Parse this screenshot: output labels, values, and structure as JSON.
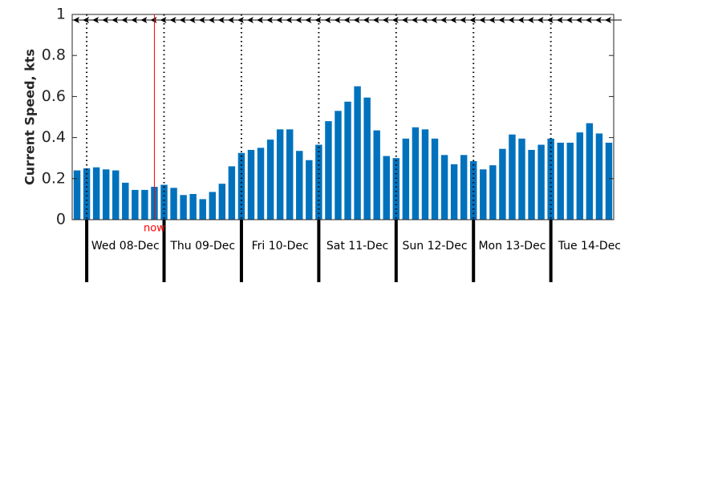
{
  "chart_data": {
    "type": "bar",
    "y_label": "Current Speed, kts",
    "x": [
      -3,
      0,
      3,
      6,
      9,
      12,
      15,
      18,
      21,
      24,
      27,
      30,
      33,
      36,
      39,
      42,
      45,
      48,
      51,
      54,
      57,
      60,
      63,
      66,
      69,
      72,
      75,
      78,
      81,
      84,
      87,
      90,
      93,
      96,
      99,
      102,
      105,
      108,
      111,
      114,
      117,
      120,
      123,
      126,
      129,
      132,
      135,
      138,
      141,
      144,
      147,
      150,
      153,
      156,
      159,
      162
    ],
    "values": [
      0.24,
      0.25,
      0.255,
      0.245,
      0.24,
      0.18,
      0.145,
      0.145,
      0.16,
      0.17,
      0.155,
      0.12,
      0.125,
      0.1,
      0.135,
      0.175,
      0.26,
      0.325,
      0.34,
      0.35,
      0.39,
      0.44,
      0.44,
      0.335,
      0.29,
      0.365,
      0.48,
      0.53,
      0.575,
      0.65,
      0.595,
      0.435,
      0.31,
      0.3,
      0.395,
      0.45,
      0.44,
      0.395,
      0.315,
      0.27,
      0.315,
      0.285,
      0.245,
      0.265,
      0.345,
      0.415,
      0.395,
      0.34,
      0.365,
      0.395,
      0.375,
      0.375,
      0.425,
      0.47,
      0.42,
      0.375
    ],
    "color": "#0072bd",
    "xlim": [
      -4.5,
      163.5
    ],
    "xticks": [
      {
        "value": 0,
        "label": "Wed 08-Dec"
      },
      {
        "value": 24,
        "label": "Thu 09-Dec"
      },
      {
        "value": 48,
        "label": "Fri 10-Dec"
      },
      {
        "value": 72,
        "label": "Sat 11-Dec"
      },
      {
        "value": 96,
        "label": "Sun 12-Dec"
      },
      {
        "value": 120,
        "label": "Mon 13-Dec"
      },
      {
        "value": 144,
        "label": "Tue 14-Dec"
      }
    ],
    "ylim": [
      0,
      1
    ],
    "yticks": [
      0,
      0.2,
      0.4,
      0.6,
      0.8,
      1
    ],
    "now": {
      "x": 21,
      "label": "now",
      "color": "#ff0000"
    }
  }
}
